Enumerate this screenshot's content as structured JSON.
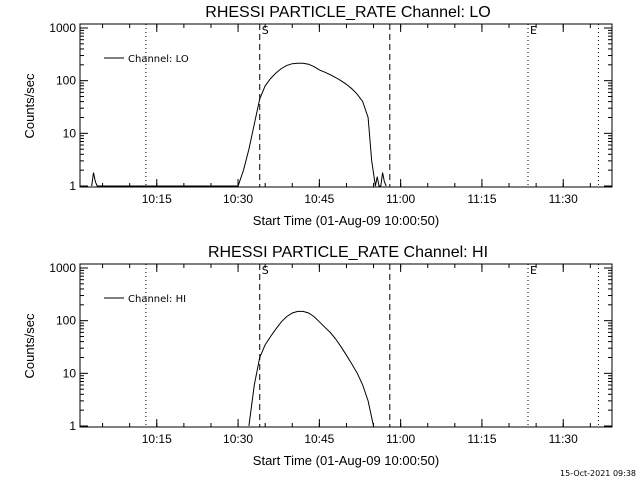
{
  "chart_data": [
    {
      "type": "line",
      "title": "RHESSI PARTICLE_RATE Channel: LO",
      "xlabel": "Start Time (01-Aug-09 10:00:50)",
      "ylabel": "Counts/sec",
      "yscale": "log",
      "ylim": [
        1,
        1000
      ],
      "xlim": [
        "10:00:50",
        "11:39:00"
      ],
      "x_ticks": [
        "10:15",
        "10:30",
        "10:45",
        "11:00",
        "11:15",
        "11:30"
      ],
      "y_ticks": [
        "1",
        "10",
        "100",
        "1000"
      ],
      "legend_position": "top-left",
      "grid": false,
      "series": [
        {
          "name": "Channel: LO",
          "x": [
            "10:03:00",
            "10:03:20",
            "10:03:40",
            "10:04:00",
            "10:30:00",
            "10:31:00",
            "10:32:00",
            "10:33:00",
            "10:34:00",
            "10:35:00",
            "10:36:00",
            "10:37:00",
            "10:38:00",
            "10:39:00",
            "10:40:00",
            "10:41:00",
            "10:42:00",
            "10:43:00",
            "10:44:00",
            "10:45:00",
            "10:46:00",
            "10:47:00",
            "10:48:00",
            "10:49:00",
            "10:50:00",
            "10:51:00",
            "10:52:00",
            "10:53:00",
            "10:54:00",
            "10:54:40",
            "10:55:20",
            "10:55:40",
            "10:56:00",
            "10:56:20",
            "10:56:40",
            "10:57:00",
            "10:57:20"
          ],
          "values": [
            1,
            1.8,
            1.2,
            1,
            1,
            2,
            5,
            15,
            45,
            80,
            110,
            140,
            170,
            195,
            210,
            215,
            215,
            205,
            185,
            160,
            145,
            130,
            115,
            100,
            85,
            70,
            55,
            40,
            20,
            3,
            1,
            1.5,
            1,
            1,
            1.8,
            1.2,
            1
          ]
        }
      ],
      "vlines": [
        {
          "x": "10:13:00",
          "style": "dotted"
        },
        {
          "x": "10:34:00",
          "style": "dashed",
          "label": "S"
        },
        {
          "x": "10:58:00",
          "style": "dashed"
        },
        {
          "x": "11:23:30",
          "style": "dotted",
          "label": "E"
        },
        {
          "x": "11:36:30",
          "style": "dotted"
        }
      ]
    },
    {
      "type": "line",
      "title": "RHESSI PARTICLE_RATE Channel: HI",
      "xlabel": "Start Time (01-Aug-09 10:00:50)",
      "ylabel": "Counts/sec",
      "yscale": "log",
      "ylim": [
        1,
        1000
      ],
      "xlim": [
        "10:00:50",
        "11:39:00"
      ],
      "x_ticks": [
        "10:15",
        "10:30",
        "10:45",
        "11:00",
        "11:15",
        "11:30"
      ],
      "y_ticks": [
        "1",
        "10",
        "100",
        "1000"
      ],
      "legend_position": "top-left",
      "grid": false,
      "series": [
        {
          "name": "Channel: HI",
          "x": [
            "10:32:00",
            "10:33:00",
            "10:34:00",
            "10:35:00",
            "10:36:00",
            "10:37:00",
            "10:38:00",
            "10:39:00",
            "10:40:00",
            "10:41:00",
            "10:42:00",
            "10:43:00",
            "10:44:00",
            "10:45:00",
            "10:46:00",
            "10:47:00",
            "10:48:00",
            "10:49:00",
            "10:50:00",
            "10:51:00",
            "10:52:00",
            "10:53:00",
            "10:54:00",
            "10:55:00"
          ],
          "values": [
            1,
            6,
            20,
            35,
            50,
            70,
            95,
            120,
            140,
            150,
            150,
            140,
            120,
            95,
            75,
            60,
            45,
            32,
            22,
            15,
            10,
            6,
            3,
            1
          ]
        }
      ],
      "vlines": [
        {
          "x": "10:13:00",
          "style": "dotted"
        },
        {
          "x": "10:34:00",
          "style": "dashed",
          "label": "S"
        },
        {
          "x": "10:58:00",
          "style": "dashed"
        },
        {
          "x": "11:23:30",
          "style": "dotted",
          "label": "E"
        },
        {
          "x": "11:36:30",
          "style": "dotted"
        }
      ]
    }
  ],
  "footer": {
    "timestamp": "15-Oct-2021 09:38"
  }
}
